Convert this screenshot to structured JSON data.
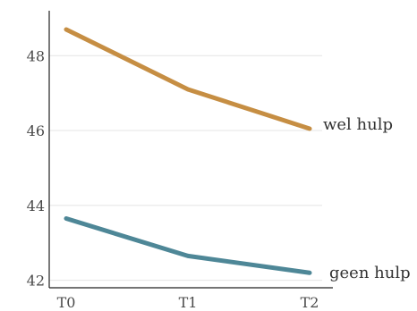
{
  "chart_data": {
    "type": "line",
    "title": "",
    "xlabel": "",
    "ylabel": "",
    "categories": [
      "T0",
      "T1",
      "T2"
    ],
    "x_tick_labels": [
      "T0",
      "T1",
      "T2"
    ],
    "y_ticks": [
      42,
      44,
      46,
      48
    ],
    "y_tick_labels": [
      "42",
      "44",
      "46",
      "48"
    ],
    "ylim": [
      41.8,
      49.2
    ],
    "grid": "horizontal",
    "legend": "direct labels at line ends",
    "series": [
      {
        "name": "wel hulp",
        "values": [
          48.7,
          47.1,
          46.05
        ],
        "color": "#c68e43"
      },
      {
        "name": "geen hulp",
        "values": [
          43.65,
          42.65,
          42.2
        ],
        "color": "#4e8797"
      }
    ]
  }
}
